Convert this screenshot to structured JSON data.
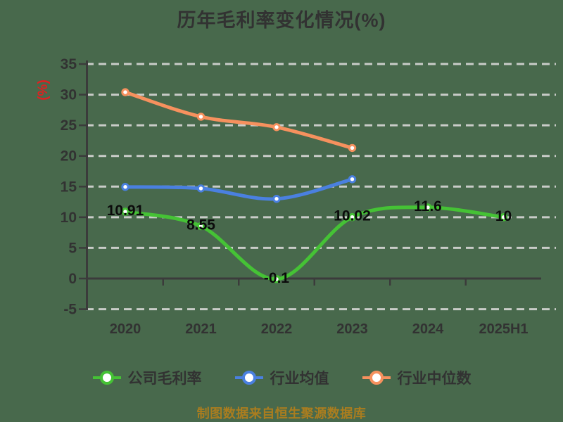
{
  "colors": {
    "background": "#48694c",
    "grid": "#c9ccc8",
    "axis": "#3b3b3b",
    "tick_label": "#323232",
    "title": "#323232",
    "y_unit": "#de2121",
    "data_label": "#0b0b0b",
    "legend_text": "#323232",
    "caption": "#aa7d1f"
  },
  "chart_data": {
    "type": "line",
    "title": "历年毛利率变化情况(%)",
    "ylabel": "(%)",
    "caption": "制图数据来自恒生聚源数据库",
    "categories": [
      "2020",
      "2021",
      "2022",
      "2023",
      "2024",
      "2025H1"
    ],
    "y_ticks": [
      35,
      30,
      25,
      20,
      15,
      10,
      5,
      0,
      -5
    ],
    "ylim": [
      -5,
      35
    ],
    "grid": "horizontal-dashed",
    "legend_position": "bottom",
    "series": [
      {
        "key": "company-gross-margin",
        "name": "公司毛利率",
        "color": "#45c235",
        "values": [
          10.91,
          8.55,
          -0.1,
          10.02,
          11.6,
          10
        ],
        "labels": [
          "10.91",
          "8.55",
          "-0.1",
          "10.02",
          "11.6",
          "10"
        ]
      },
      {
        "key": "industry-average",
        "name": "行业均值",
        "color": "#4a80e0",
        "values": [
          14.95,
          14.7,
          13.0,
          16.2
        ],
        "labels": []
      },
      {
        "key": "industry-median",
        "name": "行业中位数",
        "color": "#f6915e",
        "values": [
          30.4,
          26.4,
          24.7,
          21.3
        ],
        "labels": []
      }
    ]
  }
}
